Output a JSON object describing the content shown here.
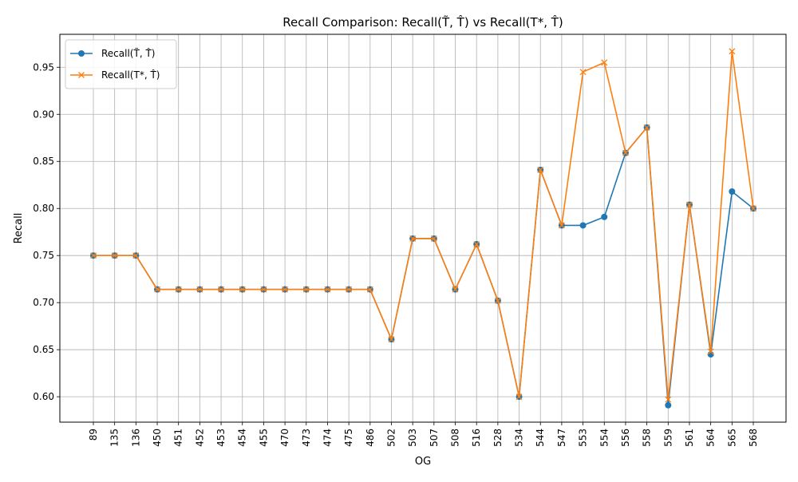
{
  "chart_data": {
    "type": "line",
    "title": "Recall Comparison: Recall(T̃, T̂) vs Recall(T*, T̂)",
    "xlabel": "OG",
    "ylabel": "Recall",
    "categories": [
      "89",
      "135",
      "136",
      "450",
      "451",
      "452",
      "453",
      "454",
      "455",
      "470",
      "473",
      "474",
      "475",
      "486",
      "502",
      "503",
      "507",
      "508",
      "516",
      "528",
      "534",
      "544",
      "547",
      "553",
      "554",
      "556",
      "558",
      "559",
      "561",
      "564",
      "565",
      "568"
    ],
    "ylim": [
      0.573,
      0.985
    ],
    "yticks": [
      0.6,
      0.65,
      0.7,
      0.75,
      0.8,
      0.85,
      0.9,
      0.95
    ],
    "ytick_labels": [
      "0.60",
      "0.65",
      "0.70",
      "0.75",
      "0.80",
      "0.85",
      "0.90",
      "0.95"
    ],
    "grid": true,
    "legend": "top-left",
    "series": [
      {
        "name": "Recall(T̃, T̂)",
        "color": "#1f77b4",
        "marker": "circle",
        "values": [
          0.75,
          0.75,
          0.75,
          0.714,
          0.714,
          0.714,
          0.714,
          0.714,
          0.714,
          0.714,
          0.714,
          0.714,
          0.714,
          0.714,
          0.661,
          0.768,
          0.768,
          0.714,
          0.762,
          0.702,
          0.6,
          0.841,
          0.782,
          0.782,
          0.791,
          0.859,
          0.886,
          0.591,
          0.804,
          0.645,
          0.818,
          0.8
        ]
      },
      {
        "name": "Recall(T*, T̂)",
        "color": "#ff7f0e",
        "marker": "x",
        "values": [
          0.75,
          0.75,
          0.75,
          0.714,
          0.714,
          0.714,
          0.714,
          0.714,
          0.714,
          0.714,
          0.714,
          0.714,
          0.714,
          0.714,
          0.661,
          0.768,
          0.768,
          0.714,
          0.762,
          0.702,
          0.6,
          0.841,
          0.782,
          0.945,
          0.955,
          0.859,
          0.886,
          0.597,
          0.804,
          0.648,
          0.967,
          0.8
        ]
      }
    ]
  }
}
